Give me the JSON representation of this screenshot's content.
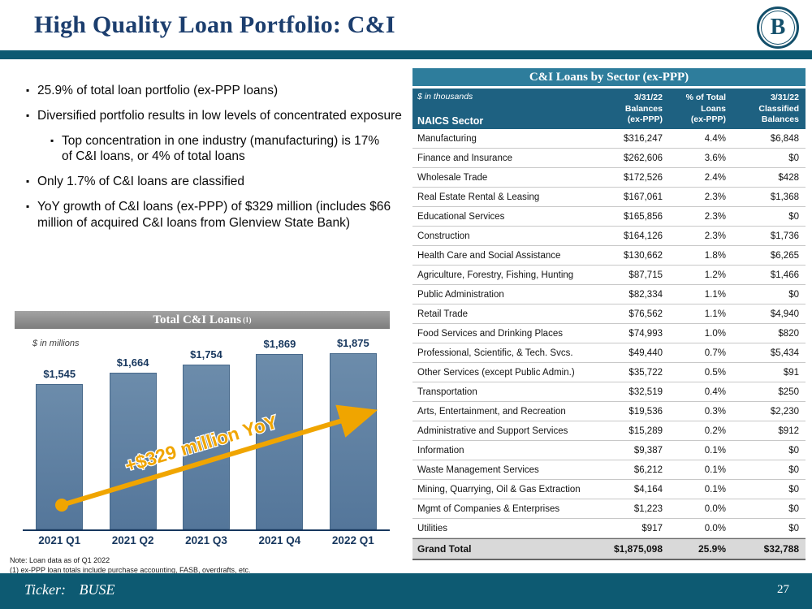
{
  "slide": {
    "title": "High Quality Loan Portfolio: C&I"
  },
  "logo": {
    "letter": "B"
  },
  "bullets": [
    {
      "level": 1,
      "text": "25.9% of total loan portfolio (ex-PPP loans)"
    },
    {
      "level": 1,
      "text": "Diversified portfolio results in low levels of concentrated exposure"
    },
    {
      "level": 2,
      "text": "Top concentration in one industry (manufacturing) is 17% of C&I loans, or 4% of total loans"
    },
    {
      "level": 1,
      "text": "Only 1.7% of C&I loans are classified"
    },
    {
      "level": 1,
      "text": "YoY growth of C&I loans (ex-PPP) of $329 million (includes $66 million of acquired C&I loans from Glenview State Bank)"
    }
  ],
  "chart": {
    "title": "Total C&I Loans",
    "title_superscript": "(1)",
    "units_label": "$ in millions"
  },
  "chart_data": {
    "type": "bar",
    "title": "Total C&I Loans (1)",
    "ylabel": "$ in millions",
    "categories": [
      "2021 Q1",
      "2021 Q2",
      "2021 Q3",
      "2021 Q4",
      "2022 Q1"
    ],
    "values": [
      1545,
      1664,
      1754,
      1869,
      1875
    ],
    "labels": [
      "$1,545",
      "$1,664",
      "$1,754",
      "$1,869",
      "$1,875"
    ],
    "ylim": [
      0,
      1900
    ],
    "grid": false,
    "legend": "none",
    "annotation": "+$329 million YoY",
    "bar_color": "#5b7fa0",
    "arrow_color": "#f0a500"
  },
  "notes": [
    "Note: Loan data as of Q1 2022",
    "(1) ex-PPP loan totals include purchase accounting, FASB, overdrafts, etc."
  ],
  "table": {
    "title": "C&I Loans by Sector (ex-PPP)",
    "units_label": "$ in thousands",
    "col1_header": "NAICS Sector",
    "headers": [
      "3/31/22\nBalances\n(ex-PPP)",
      "% of Total\nLoans\n(ex-PPP)",
      "3/31/22\nClassified\nBalances"
    ],
    "rows": [
      {
        "sector": "Manufacturing",
        "balance": "$316,247",
        "pct": "4.4%",
        "classified": "$6,848"
      },
      {
        "sector": "Finance and Insurance",
        "balance": "$262,606",
        "pct": "3.6%",
        "classified": "$0"
      },
      {
        "sector": "Wholesale Trade",
        "balance": "$172,526",
        "pct": "2.4%",
        "classified": "$428"
      },
      {
        "sector": "Real Estate Rental & Leasing",
        "balance": "$167,061",
        "pct": "2.3%",
        "classified": "$1,368"
      },
      {
        "sector": "Educational Services",
        "balance": "$165,856",
        "pct": "2.3%",
        "classified": "$0"
      },
      {
        "sector": "Construction",
        "balance": "$164,126",
        "pct": "2.3%",
        "classified": "$1,736"
      },
      {
        "sector": "Health Care and Social Assistance",
        "balance": "$130,662",
        "pct": "1.8%",
        "classified": "$6,265"
      },
      {
        "sector": "Agriculture, Forestry, Fishing, Hunting",
        "balance": "$87,715",
        "pct": "1.2%",
        "classified": "$1,466"
      },
      {
        "sector": "Public Administration",
        "balance": "$82,334",
        "pct": "1.1%",
        "classified": "$0"
      },
      {
        "sector": "Retail Trade",
        "balance": "$76,562",
        "pct": "1.1%",
        "classified": "$4,940"
      },
      {
        "sector": "Food Services and Drinking Places",
        "balance": "$74,993",
        "pct": "1.0%",
        "classified": "$820"
      },
      {
        "sector": "Professional, Scientific, & Tech. Svcs.",
        "balance": "$49,440",
        "pct": "0.7%",
        "classified": "$5,434"
      },
      {
        "sector": "Other Services (except Public Admin.)",
        "balance": "$35,722",
        "pct": "0.5%",
        "classified": "$91"
      },
      {
        "sector": "Transportation",
        "balance": "$32,519",
        "pct": "0.4%",
        "classified": "$250"
      },
      {
        "sector": "Arts, Entertainment, and Recreation",
        "balance": "$19,536",
        "pct": "0.3%",
        "classified": "$2,230"
      },
      {
        "sector": "Administrative and Support Services",
        "balance": "$15,289",
        "pct": "0.2%",
        "classified": "$912"
      },
      {
        "sector": "Information",
        "balance": "$9,387",
        "pct": "0.1%",
        "classified": "$0"
      },
      {
        "sector": "Waste Management Services",
        "balance": "$6,212",
        "pct": "0.1%",
        "classified": "$0"
      },
      {
        "sector": "Mining, Quarrying, Oil & Gas Extraction",
        "balance": "$4,164",
        "pct": "0.1%",
        "classified": "$0"
      },
      {
        "sector": "Mgmt of Companies & Enterprises",
        "balance": "$1,223",
        "pct": "0.0%",
        "classified": "$0"
      },
      {
        "sector": "Utilities",
        "balance": "$917",
        "pct": "0.0%",
        "classified": "$0"
      }
    ],
    "grand_total": {
      "sector": "Grand Total",
      "balance": "$1,875,098",
      "pct": "25.9%",
      "classified": "$32,788"
    }
  },
  "footer": {
    "ticker_label": "Ticker:",
    "ticker_value": "BUSE",
    "page_number": "27"
  },
  "colors": {
    "teal_bar": "#0d5a72",
    "table_title_bg": "#2e7d9c",
    "table_header_bg": "#1e6181",
    "title_navy": "#1c3e6e",
    "bar_blue": "#5b7fa0",
    "arrow_gold": "#f0a500",
    "grand_total_bg": "#d9d9d9"
  }
}
